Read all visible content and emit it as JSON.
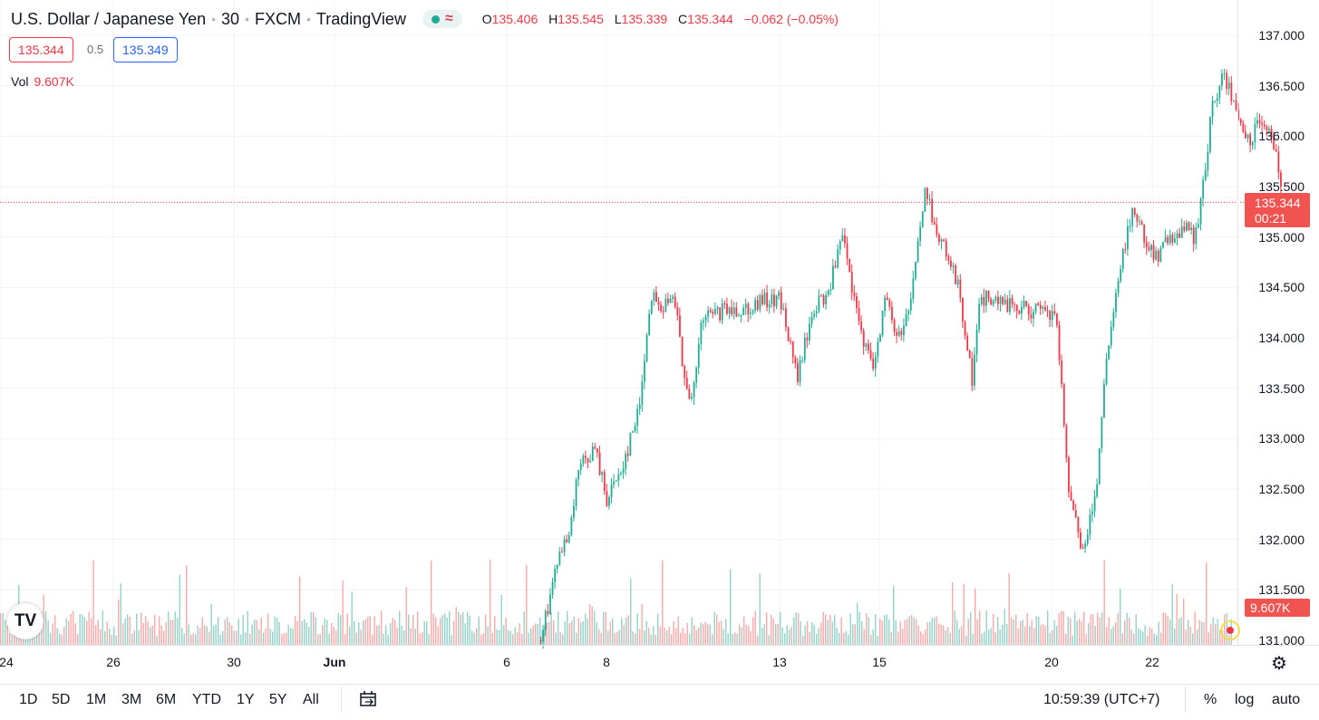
{
  "header": {
    "symbol": "U.S. Dollar / Japanese Yen",
    "interval": "30",
    "exchange": "FXCM",
    "source": "TradingView",
    "ohlc": {
      "o_label": "O",
      "o": "135.406",
      "h_label": "H",
      "h": "135.545",
      "l_label": "L",
      "l": "135.339",
      "c_label": "C",
      "c": "135.344",
      "change": "−0.062 (−0.05%)"
    }
  },
  "quotes": {
    "bid": "135.344",
    "spread": "0.5",
    "ask": "135.349"
  },
  "volume": {
    "label": "Vol",
    "value": "9.607K"
  },
  "price_label": {
    "price": "135.344",
    "countdown": "00:21"
  },
  "volume_label": "9.607K",
  "timeframes": [
    "1D",
    "5D",
    "1M",
    "3M",
    "6M",
    "YTD",
    "1Y",
    "5Y",
    "All"
  ],
  "clock": "10:59:39 (UTC+7)",
  "options": {
    "percent": "%",
    "log": "log",
    "auto": "auto"
  },
  "colors": {
    "up": "#22ab94",
    "down": "#f23645",
    "up_vol": "#93d2c8",
    "down_vol": "#f7a8a8",
    "price_label": "#f05350"
  },
  "chart_data": {
    "type": "candlestick",
    "symbol": "USDJPY",
    "interval": "30",
    "ylim": [
      131.0,
      137.0
    ],
    "y_ticks": [
      "131.000",
      "131.500",
      "132.000",
      "132.500",
      "133.000",
      "133.500",
      "134.000",
      "134.500",
      "135.000",
      "135.500",
      "136.000",
      "136.500",
      "137.000"
    ],
    "x_ticks": [
      {
        "label": "24",
        "date": "2022-05-24"
      },
      {
        "label": "26",
        "date": "2022-05-26"
      },
      {
        "label": "30",
        "date": "2022-05-30"
      },
      {
        "label": "Jun",
        "date": "2022-06-01",
        "bold": true
      },
      {
        "label": "6",
        "date": "2022-06-06"
      },
      {
        "label": "8",
        "date": "2022-06-08"
      },
      {
        "label": "13",
        "date": "2022-06-13"
      },
      {
        "label": "15",
        "date": "2022-06-15"
      },
      {
        "label": "20",
        "date": "2022-06-20"
      },
      {
        "label": "22",
        "date": "2022-06-22"
      }
    ],
    "price_path": [
      [
        "2022-06-06 16:00",
        131.0
      ],
      [
        "2022-06-07 00:00",
        131.8
      ],
      [
        "2022-06-07 06:00",
        132.0
      ],
      [
        "2022-06-07 10:00",
        132.7
      ],
      [
        "2022-06-07 18:00",
        132.9
      ],
      [
        "2022-06-08 00:00",
        132.4
      ],
      [
        "2022-06-08 12:00",
        132.8
      ],
      [
        "2022-06-08 22:00",
        133.3
      ],
      [
        "2022-06-09 06:00",
        134.4
      ],
      [
        "2022-06-09 14:00",
        134.3
      ],
      [
        "2022-06-10 00:00",
        134.4
      ],
      [
        "2022-06-10 06:00",
        133.5
      ],
      [
        "2022-06-10 10:00",
        133.3
      ],
      [
        "2022-06-10 18:00",
        134.2
      ],
      [
        "2022-06-13 00:00",
        134.4
      ],
      [
        "2022-06-13 08:00",
        133.6
      ],
      [
        "2022-06-13 16:00",
        134.3
      ],
      [
        "2022-06-13 22:00",
        134.4
      ],
      [
        "2022-06-14 06:00",
        135.0
      ],
      [
        "2022-06-14 12:00",
        134.3
      ],
      [
        "2022-06-14 20:00",
        133.7
      ],
      [
        "2022-06-15 04:00",
        134.4
      ],
      [
        "2022-06-15 12:00",
        134.0
      ],
      [
        "2022-06-15 20:00",
        134.3
      ],
      [
        "2022-06-16 04:00",
        135.1
      ],
      [
        "2022-06-16 08:00",
        135.5
      ],
      [
        "2022-06-16 16:00",
        135.0
      ],
      [
        "2022-06-17 00:00",
        134.8
      ],
      [
        "2022-06-17 08:00",
        134.4
      ],
      [
        "2022-06-17 16:00",
        133.6
      ],
      [
        "2022-06-17 22:00",
        134.4
      ],
      [
        "2022-06-20 02:00",
        134.2
      ],
      [
        "2022-06-20 08:00",
        132.4
      ],
      [
        "2022-06-20 14:00",
        131.9
      ],
      [
        "2022-06-20 20:00",
        132.3
      ],
      [
        "2022-06-21 02:00",
        133.8
      ],
      [
        "2022-06-21 08:00",
        134.6
      ],
      [
        "2022-06-21 14:00",
        135.3
      ],
      [
        "2022-06-21 20:00",
        135.0
      ],
      [
        "2022-06-22 02:00",
        134.8
      ],
      [
        "2022-06-22 08:00",
        135.0
      ],
      [
        "2022-06-22 14:00",
        135.1
      ],
      [
        "2022-06-22 20:00",
        135.0
      ],
      [
        "2022-06-23 00:00",
        135.5
      ],
      [
        "2022-06-23 04:00",
        136.3
      ],
      [
        "2022-06-23 10:00",
        136.6
      ],
      [
        "2022-06-23 16:00",
        136.2
      ],
      [
        "2022-06-23 22:00",
        135.9
      ],
      [
        "2022-06-24 04:00",
        136.2
      ],
      [
        "2022-06-24 08:00",
        136.1
      ],
      [
        "2022-06-24 12:00",
        135.6
      ],
      [
        "2022-06-24 14:00",
        135.344
      ]
    ],
    "last_price": 135.344,
    "last_volume": "9.607K"
  }
}
